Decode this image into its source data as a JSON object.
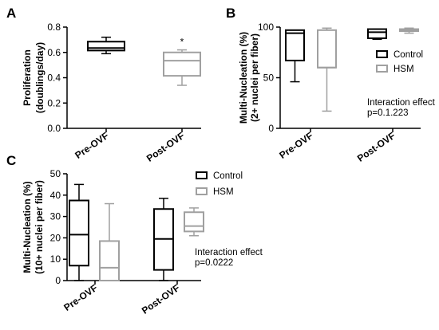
{
  "chart_data": [
    {
      "panel": "A",
      "type": "box",
      "ylabel_line1": "Proliferation",
      "ylabel_line2": "(doublings/day)",
      "ylim": [
        0,
        0.8
      ],
      "yticks": [
        0.0,
        0.2,
        0.4,
        0.6,
        0.8
      ],
      "ytick_labels": [
        "0.0",
        "0.2",
        "0.4",
        "0.6",
        "0.8"
      ],
      "categories": [
        "Pre-OVF",
        "Post-OVF"
      ],
      "series": [
        {
          "category": "Pre-OVF",
          "color": "#000000",
          "min": 0.59,
          "q1": 0.615,
          "median": 0.635,
          "q3": 0.685,
          "max": 0.72
        },
        {
          "category": "Post-OVF",
          "color": "#a0a0a0",
          "min": 0.34,
          "q1": 0.415,
          "median": 0.535,
          "q3": 0.6,
          "max": 0.62,
          "marker": "*"
        }
      ]
    },
    {
      "panel": "B",
      "type": "box",
      "ylabel_line1": "Multi-Nucleation (%)",
      "ylabel_line2": "(2+ nuclei per fiber)",
      "ylim": [
        0,
        100
      ],
      "yticks": [
        0,
        50,
        100
      ],
      "ytick_labels": [
        "0",
        "50",
        "100"
      ],
      "categories": [
        "Pre-OVF",
        "Post-OVF"
      ],
      "legend": [
        {
          "label": "Control",
          "color": "#000000"
        },
        {
          "label": "HSM",
          "color": "#a0a0a0"
        }
      ],
      "annotation_line1": "Interaction effect",
      "annotation_line2": "p=0.1.223",
      "series": [
        {
          "name": "Control",
          "category": "Pre-OVF",
          "color": "#000000",
          "min": 46,
          "q1": 67,
          "median": 94,
          "q3": 97,
          "max": 97
        },
        {
          "name": "HSM",
          "category": "Pre-OVF",
          "color": "#a0a0a0",
          "min": 17,
          "q1": 60,
          "median": 60,
          "q3": 97,
          "max": 99
        },
        {
          "name": "Control",
          "category": "Post-OVF",
          "color": "#000000",
          "min": 88,
          "q1": 89,
          "median": 95,
          "q3": 98,
          "max": 98
        },
        {
          "name": "HSM",
          "category": "Post-OVF",
          "color": "#a0a0a0",
          "min": 94,
          "q1": 96,
          "median": 97,
          "q3": 98,
          "max": 99
        }
      ]
    },
    {
      "panel": "C",
      "type": "box",
      "ylabel_line1": "Multi-Nucleation (%)",
      "ylabel_line2": "(10+ nuclei per fiber)",
      "ylim": [
        0,
        50
      ],
      "yticks": [
        0,
        10,
        20,
        30,
        40,
        50
      ],
      "ytick_labels": [
        "0",
        "10",
        "20",
        "30",
        "40",
        "50"
      ],
      "categories": [
        "Pre-OVF",
        "Post-OVF"
      ],
      "legend": [
        {
          "label": "Control",
          "color": "#000000"
        },
        {
          "label": "HSM",
          "color": "#a0a0a0"
        }
      ],
      "annotation_line1": "Interaction effect",
      "annotation_line2": "p=0.0222",
      "series": [
        {
          "name": "Control",
          "category": "Pre-OVF",
          "color": "#000000",
          "min": 0,
          "q1": 7,
          "median": 21.5,
          "q3": 37.5,
          "max": 45
        },
        {
          "name": "HSM",
          "category": "Pre-OVF",
          "color": "#a0a0a0",
          "min": 0,
          "q1": 0,
          "median": 6,
          "q3": 18.5,
          "max": 36
        },
        {
          "name": "Control",
          "category": "Post-OVF",
          "color": "#000000",
          "min": 0,
          "q1": 5,
          "median": 19.5,
          "q3": 33.5,
          "max": 38.5
        },
        {
          "name": "HSM",
          "category": "Post-OVF",
          "color": "#a0a0a0",
          "min": 21,
          "q1": 23,
          "median": 25.5,
          "q3": 32,
          "max": 34
        }
      ]
    }
  ]
}
